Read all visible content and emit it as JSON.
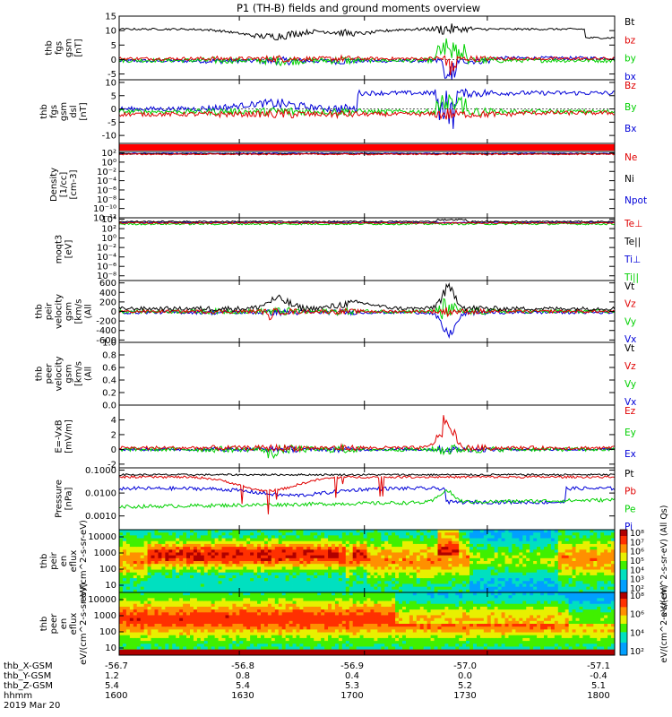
{
  "title": "P1 (TH-B) fields and ground moments overview",
  "colors": {
    "black": "#000000",
    "red": "#e00000",
    "green": "#00d000",
    "blue": "#0000d8"
  },
  "footer": {
    "rows": [
      {
        "label": "thb_X-GSM",
        "values": [
          "-56.7",
          "-56.8",
          "-56.9",
          "-57.0",
          "-57.1"
        ]
      },
      {
        "label": "thb_Y-GSM",
        "values": [
          "1.2",
          "0.8",
          "0.4",
          "0.0",
          "-0.4"
        ]
      },
      {
        "label": "thb_Z-GSM",
        "values": [
          "5.4",
          "5.4",
          "5.3",
          "5.2",
          "5.1"
        ]
      },
      {
        "label": "hhmm",
        "values": [
          "1600",
          "1630",
          "1700",
          "1730",
          "1800"
        ]
      }
    ],
    "date": "2019 Mar 20"
  },
  "chart_data": [
    {
      "type": "line",
      "ylabel": "thb fgs gsm [nT]",
      "ylim": [
        -7,
        15
      ],
      "yticks": [
        {
          "v": 15,
          "t": "15"
        },
        {
          "v": 10,
          "t": "10"
        },
        {
          "v": 5,
          "t": "5"
        },
        {
          "v": 0,
          "t": "0"
        },
        {
          "v": -5,
          "t": "-5"
        }
      ],
      "series": [
        {
          "name": "Bt",
          "color": "black"
        },
        {
          "name": "bz",
          "color": "red"
        },
        {
          "name": "by",
          "color": "green"
        },
        {
          "name": "bx",
          "color": "blue"
        }
      ]
    },
    {
      "type": "line",
      "ylabel": "thb fgs gsm dsl [nT]",
      "ylim": [
        -13,
        11
      ],
      "yticks": [
        {
          "v": 10,
          "t": "10"
        },
        {
          "v": 5,
          "t": "5"
        },
        {
          "v": 0,
          "t": "0"
        },
        {
          "v": -5,
          "t": "-5"
        },
        {
          "v": -10,
          "t": "-10"
        }
      ],
      "series": [
        {
          "name": "Bz",
          "color": "red"
        },
        {
          "name": "By",
          "color": "green"
        },
        {
          "name": "Bx",
          "color": "blue"
        }
      ]
    },
    {
      "type": "flag",
      "color": "red"
    },
    {
      "type": "line",
      "ylabel": "Density [1/cc] [cm-3]",
      "log": true,
      "ylim": [
        -14,
        0.3
      ],
      "yticks": [
        {
          "v": 0,
          "t": "10²"
        },
        {
          "v": -2,
          "t": "10⁰"
        },
        {
          "v": -4,
          "t": "10⁻²"
        },
        {
          "v": -6,
          "t": "10⁻⁴"
        },
        {
          "v": -8,
          "t": "10⁻⁶"
        },
        {
          "v": -10,
          "t": "10⁻⁸"
        },
        {
          "v": -12,
          "t": "10⁻¹⁰"
        },
        {
          "v": -14,
          "t": "10⁻¹²"
        }
      ],
      "series": [
        {
          "name": "Ne",
          "color": "red"
        },
        {
          "name": "Ni",
          "color": "black"
        },
        {
          "name": "Npot",
          "color": "blue"
        }
      ]
    },
    {
      "type": "line",
      "ylabel": "moqt3 [eV]",
      "log": true,
      "ylim": [
        -11,
        2.3
      ],
      "yticks": [
        {
          "v": 2,
          "t": "10⁴"
        },
        {
          "v": 0,
          "t": "10²"
        },
        {
          "v": -2,
          "t": "10⁰"
        },
        {
          "v": -4,
          "t": "10⁻²"
        },
        {
          "v": -6,
          "t": "10⁻⁴"
        },
        {
          "v": -8,
          "t": "10⁻⁶"
        },
        {
          "v": -10,
          "t": "10⁻⁸"
        }
      ],
      "series": [
        {
          "name": "Te⊥",
          "color": "red"
        },
        {
          "name": "Te||",
          "color": "black"
        },
        {
          "name": "Ti⊥",
          "color": "blue"
        },
        {
          "name": "Ti||",
          "color": "green"
        }
      ]
    },
    {
      "type": "line",
      "ylabel": "thb peir velocity gsm [km/s (All Qs)]",
      "ylim": [
        -650,
        650
      ],
      "yticks": [
        {
          "v": 600,
          "t": "600"
        },
        {
          "v": 400,
          "t": "400"
        },
        {
          "v": 200,
          "t": "200"
        },
        {
          "v": 0,
          "t": "0"
        },
        {
          "v": -200,
          "t": "-200"
        },
        {
          "v": -400,
          "t": "-400"
        },
        {
          "v": -600,
          "t": "-600"
        }
      ],
      "series": [
        {
          "name": "Vt",
          "color": "black"
        },
        {
          "name": "Vz",
          "color": "red"
        },
        {
          "name": "Vy",
          "color": "green"
        },
        {
          "name": "Vx",
          "color": "blue"
        }
      ]
    },
    {
      "type": "line",
      "ylabel": "thb peer velocity gsm [km/s (All Qs)]",
      "ylim": [
        0,
        1
      ],
      "yticks": [
        {
          "v": 1,
          "t": "1.0"
        },
        {
          "v": 0.8,
          "t": "0.8"
        },
        {
          "v": 0.6,
          "t": "0.6"
        },
        {
          "v": 0.4,
          "t": "0.4"
        },
        {
          "v": 0.2,
          "t": "0.2"
        },
        {
          "v": 0,
          "t": "0.0"
        }
      ],
      "series": [
        {
          "name": "Vt",
          "color": "black"
        },
        {
          "name": "Vz",
          "color": "red"
        },
        {
          "name": "Vy",
          "color": "green"
        },
        {
          "name": "Vx",
          "color": "blue"
        }
      ]
    },
    {
      "type": "line",
      "ylabel": "E=-VxB [mV/m]",
      "ylim": [
        -2.5,
        6
      ],
      "yticks": [
        {
          "v": 4,
          "t": "4"
        },
        {
          "v": 2,
          "t": "2"
        },
        {
          "v": 0,
          "t": "0"
        },
        {
          "v": -2,
          "t": "-2"
        }
      ],
      "series": [
        {
          "name": "Ez",
          "color": "red"
        },
        {
          "name": "Ey",
          "color": "green"
        },
        {
          "name": "Ex",
          "color": "blue"
        }
      ]
    },
    {
      "type": "line",
      "ylabel": "Pressure [nPa]",
      "log": true,
      "ylim": [
        -3.6,
        -0.9
      ],
      "yticks": [
        {
          "v": -1,
          "t": "0.1000"
        },
        {
          "v": -2,
          "t": "0.0100"
        },
        {
          "v": -3,
          "t": "0.0010"
        }
      ],
      "series": [
        {
          "name": "Pt",
          "color": "black"
        },
        {
          "name": "Pb",
          "color": "red"
        },
        {
          "name": "Pe",
          "color": "green"
        },
        {
          "name": "Pi",
          "color": "blue"
        }
      ]
    },
    {
      "type": "heatmap",
      "ylabel": "thb peir en eflux eV/(cm^2-s-sr-eV)",
      "yticks": [
        "10000",
        "1000",
        "100",
        "10"
      ],
      "zticks": [
        "10⁸",
        "10⁷",
        "10⁶",
        "10⁵",
        "10⁴",
        "10³",
        "10²"
      ],
      "zlabel": "eV/(cm^2-s-sr-eV) (All Qs)"
    },
    {
      "type": "heatmap",
      "ylabel": "thb peer en eflux eV/(cm^2-s-sr-eV)",
      "yticks": [
        "10000",
        "1000",
        "100",
        "10"
      ],
      "zticks": [
        "10⁸",
        "10⁶",
        "10⁴",
        "10²"
      ],
      "zlabel": "eV/(cm^2-s-sr-eV)"
    }
  ]
}
